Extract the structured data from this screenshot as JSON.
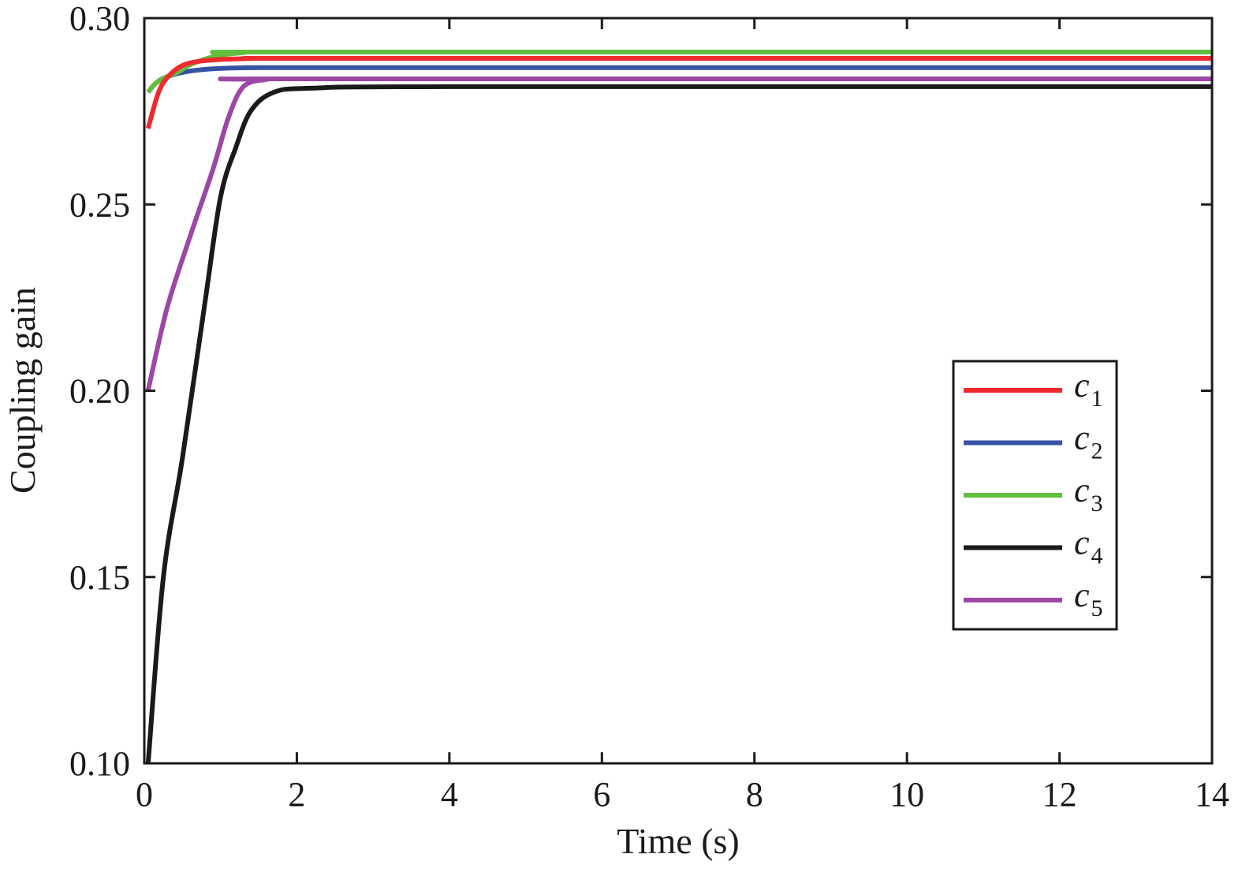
{
  "chart_data": {
    "type": "line",
    "title": "",
    "xlabel": "Time (s)",
    "ylabel": "Coupling gain",
    "xlim": [
      0,
      14
    ],
    "ylim": [
      0.1,
      0.3
    ],
    "xticks": [
      0,
      2,
      4,
      6,
      8,
      10,
      12,
      14
    ],
    "xtick_labels": [
      "0",
      "2",
      "4",
      "6",
      "8",
      "10",
      "12",
      "14"
    ],
    "yticks": [
      0.1,
      0.15,
      0.2,
      0.25,
      0.3
    ],
    "ytick_labels": [
      "0.10",
      "0.15",
      "0.20",
      "0.25",
      "0.30"
    ],
    "grid": false,
    "legend_position": "center-right",
    "series": [
      {
        "name": "c",
        "sub": "1",
        "color": "#ee2a2e",
        "x": [
          0.05,
          0.18,
          0.3,
          0.5,
          0.75,
          1.0,
          1.5,
          2.5,
          14
        ],
        "y": [
          0.2704,
          0.2797,
          0.284,
          0.2873,
          0.2885,
          0.2889,
          0.2892,
          0.2892,
          0.2892
        ]
      },
      {
        "name": "c",
        "sub": "2",
        "color": "#3652a5",
        "x": [
          0.05,
          0.15,
          0.3,
          0.6,
          1.0,
          1.5,
          2.5,
          14
        ],
        "y": [
          0.2801,
          0.2825,
          0.2843,
          0.2858,
          0.2865,
          0.2867,
          0.2867,
          0.2867
        ]
      },
      {
        "name": "c",
        "sub": "3",
        "color": "#62bf3e",
        "x": [
          0.05,
          0.15,
          0.3,
          0.45,
          0.6,
          0.9,
          1.3,
          2.0,
          14
        ],
        "y": [
          0.2801,
          0.2825,
          0.2843,
          0.2856,
          0.2875,
          0.2896,
          0.2907,
          0.2909,
          0.2909
        ]
      },
      {
        "name": "c",
        "sub": "4",
        "color": "#1a1a1a",
        "x": [
          0.05,
          0.25,
          0.5,
          0.8,
          1.0,
          1.2,
          1.4,
          1.7,
          2.2,
          4,
          14
        ],
        "y": [
          0.1,
          0.15,
          0.182,
          0.2244,
          0.252,
          0.2653,
          0.2752,
          0.2801,
          0.2812,
          0.2816,
          0.2816
        ]
      },
      {
        "name": "c",
        "sub": "5",
        "color": "#9c46a6",
        "x": [
          0.05,
          0.3,
          0.6,
          0.9,
          1.1,
          1.3,
          1.6,
          2.0,
          14
        ],
        "y": [
          0.2001,
          0.2223,
          0.2414,
          0.2594,
          0.2731,
          0.2816,
          0.2835,
          0.2837,
          0.2837
        ]
      }
    ]
  }
}
